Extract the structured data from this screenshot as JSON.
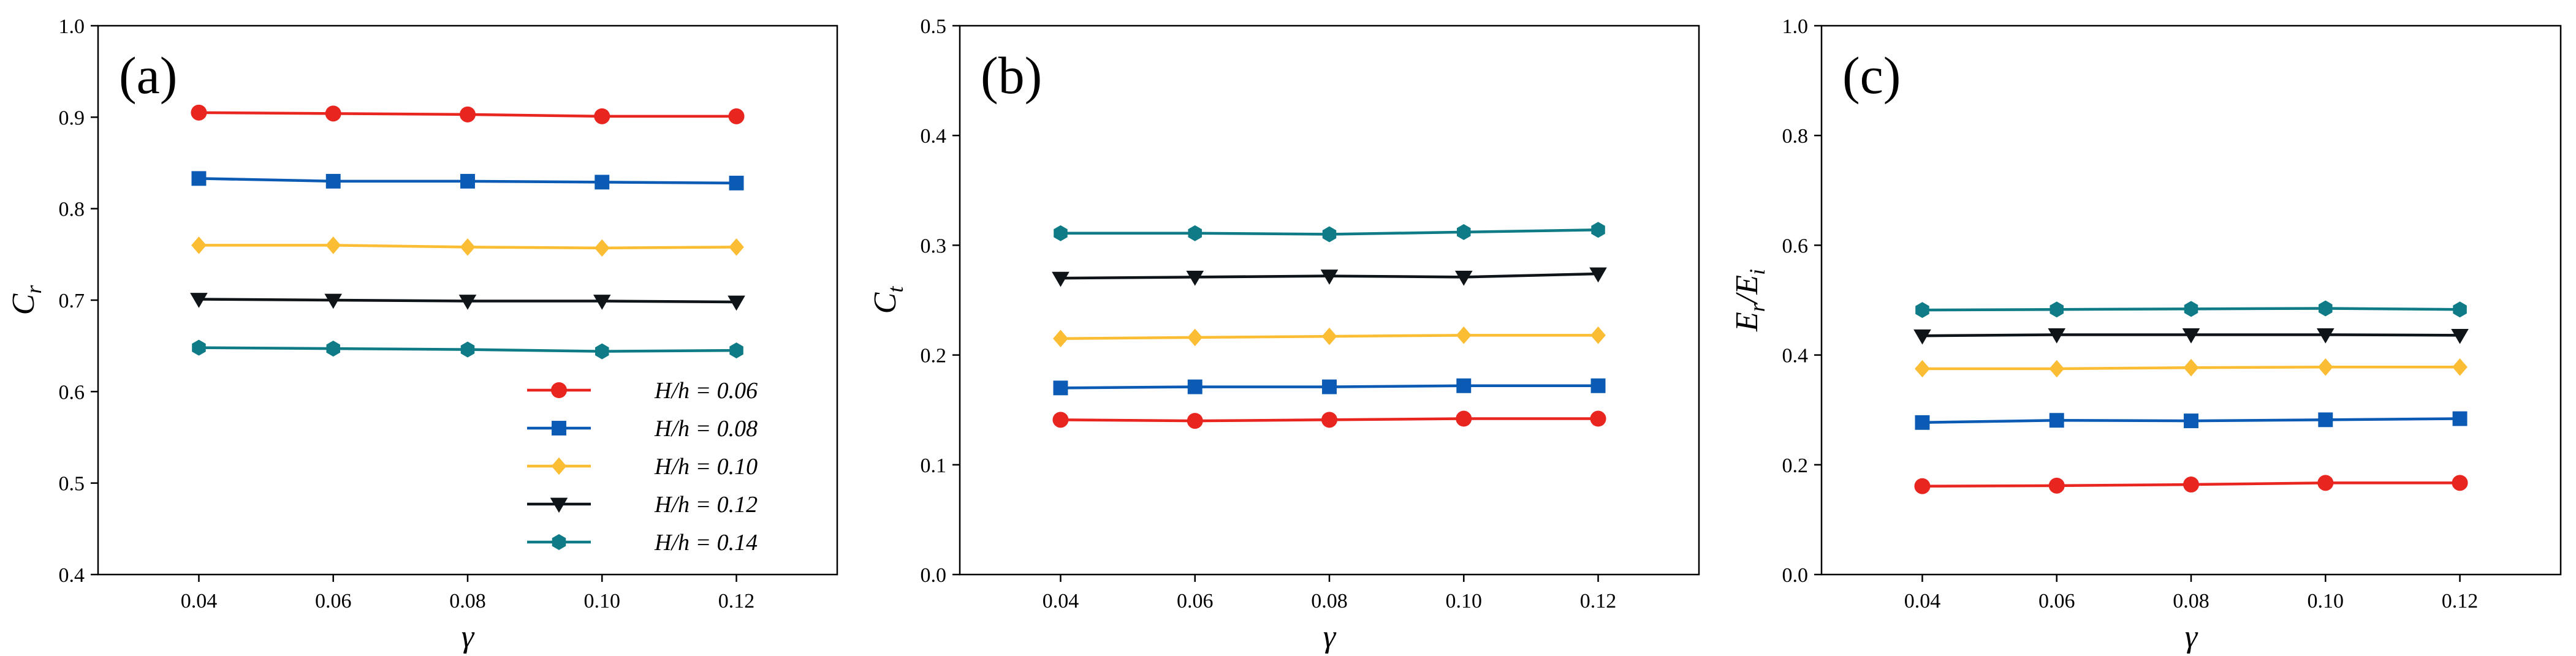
{
  "chart_data": [
    {
      "type": "line",
      "panel_label": "(a)",
      "xlabel": "γ",
      "ylabel": "C",
      "ylabel_sub": "r",
      "x": [
        0.04,
        0.06,
        0.08,
        0.1,
        0.12
      ],
      "x_tick_labels": [
        "0.04",
        "0.06",
        "0.08",
        "0.10",
        "0.12"
      ],
      "xlim": [
        0.025,
        0.135
      ],
      "ylim": [
        0.4,
        1.0
      ],
      "y_ticks": [
        0.4,
        0.5,
        0.6,
        0.7,
        0.8,
        0.9,
        1.0
      ],
      "y_tick_labels": [
        "0.4",
        "0.5",
        "0.6",
        "0.7",
        "0.8",
        "0.9",
        "1.0"
      ],
      "legend_position": "bottom-right",
      "series": [
        {
          "name": "H/h = 0.06",
          "values": [
            0.905,
            0.904,
            0.903,
            0.901,
            0.901
          ]
        },
        {
          "name": "H/h = 0.08",
          "values": [
            0.833,
            0.83,
            0.83,
            0.829,
            0.828
          ]
        },
        {
          "name": "H/h = 0.10",
          "values": [
            0.76,
            0.76,
            0.758,
            0.757,
            0.758
          ]
        },
        {
          "name": "H/h = 0.12",
          "values": [
            0.701,
            0.7,
            0.699,
            0.699,
            0.698
          ]
        },
        {
          "name": "H/h = 0.14",
          "values": [
            0.648,
            0.647,
            0.646,
            0.644,
            0.645
          ]
        }
      ]
    },
    {
      "type": "line",
      "panel_label": "(b)",
      "xlabel": "γ",
      "ylabel": "C",
      "ylabel_sub": "t",
      "x": [
        0.04,
        0.06,
        0.08,
        0.1,
        0.12
      ],
      "x_tick_labels": [
        "0.04",
        "0.06",
        "0.08",
        "0.10",
        "0.12"
      ],
      "xlim": [
        0.025,
        0.135
      ],
      "ylim": [
        0.0,
        0.5
      ],
      "y_ticks": [
        0.0,
        0.1,
        0.2,
        0.3,
        0.4,
        0.5
      ],
      "y_tick_labels": [
        "0.0",
        "0.1",
        "0.2",
        "0.3",
        "0.4",
        "0.5"
      ],
      "series": [
        {
          "name": "H/h = 0.06",
          "values": [
            0.141,
            0.14,
            0.141,
            0.142,
            0.142
          ]
        },
        {
          "name": "H/h = 0.08",
          "values": [
            0.17,
            0.171,
            0.171,
            0.172,
            0.172
          ]
        },
        {
          "name": "H/h = 0.10",
          "values": [
            0.215,
            0.216,
            0.217,
            0.218,
            0.218
          ]
        },
        {
          "name": "H/h = 0.12",
          "values": [
            0.27,
            0.271,
            0.272,
            0.271,
            0.274
          ]
        },
        {
          "name": "H/h = 0.14",
          "values": [
            0.311,
            0.311,
            0.31,
            0.312,
            0.314
          ]
        }
      ]
    },
    {
      "type": "line",
      "panel_label": "(c)",
      "xlabel": "γ",
      "ylabel": "E",
      "ylabel_sub": "r",
      "ylabel_mid": "/E",
      "ylabel_sub2": "i",
      "x": [
        0.04,
        0.06,
        0.08,
        0.1,
        0.12
      ],
      "x_tick_labels": [
        "0.04",
        "0.06",
        "0.08",
        "0.10",
        "0.12"
      ],
      "xlim": [
        0.025,
        0.135
      ],
      "ylim": [
        0.0,
        1.0
      ],
      "y_ticks": [
        0.0,
        0.2,
        0.4,
        0.6,
        0.8,
        1.0
      ],
      "y_tick_labels": [
        "0.0",
        "0.2",
        "0.4",
        "0.6",
        "0.8",
        "1.0"
      ],
      "series": [
        {
          "name": "H/h = 0.06",
          "values": [
            0.161,
            0.162,
            0.164,
            0.167,
            0.167
          ]
        },
        {
          "name": "H/h = 0.08",
          "values": [
            0.277,
            0.281,
            0.28,
            0.282,
            0.284
          ]
        },
        {
          "name": "H/h = 0.10",
          "values": [
            0.375,
            0.375,
            0.377,
            0.378,
            0.378
          ]
        },
        {
          "name": "H/h = 0.12",
          "values": [
            0.435,
            0.437,
            0.437,
            0.437,
            0.436
          ]
        },
        {
          "name": "H/h = 0.14",
          "values": [
            0.482,
            0.483,
            0.484,
            0.485,
            0.483
          ]
        }
      ]
    }
  ],
  "series_styles": [
    {
      "color": "#e8251f",
      "marker": "circle"
    },
    {
      "color": "#0b5ab3",
      "marker": "square"
    },
    {
      "color": "#fbbd34",
      "marker": "diamond"
    },
    {
      "color": "#0f1419",
      "marker": "triangle-down"
    },
    {
      "color": "#0f7b86",
      "marker": "hexagon"
    }
  ]
}
